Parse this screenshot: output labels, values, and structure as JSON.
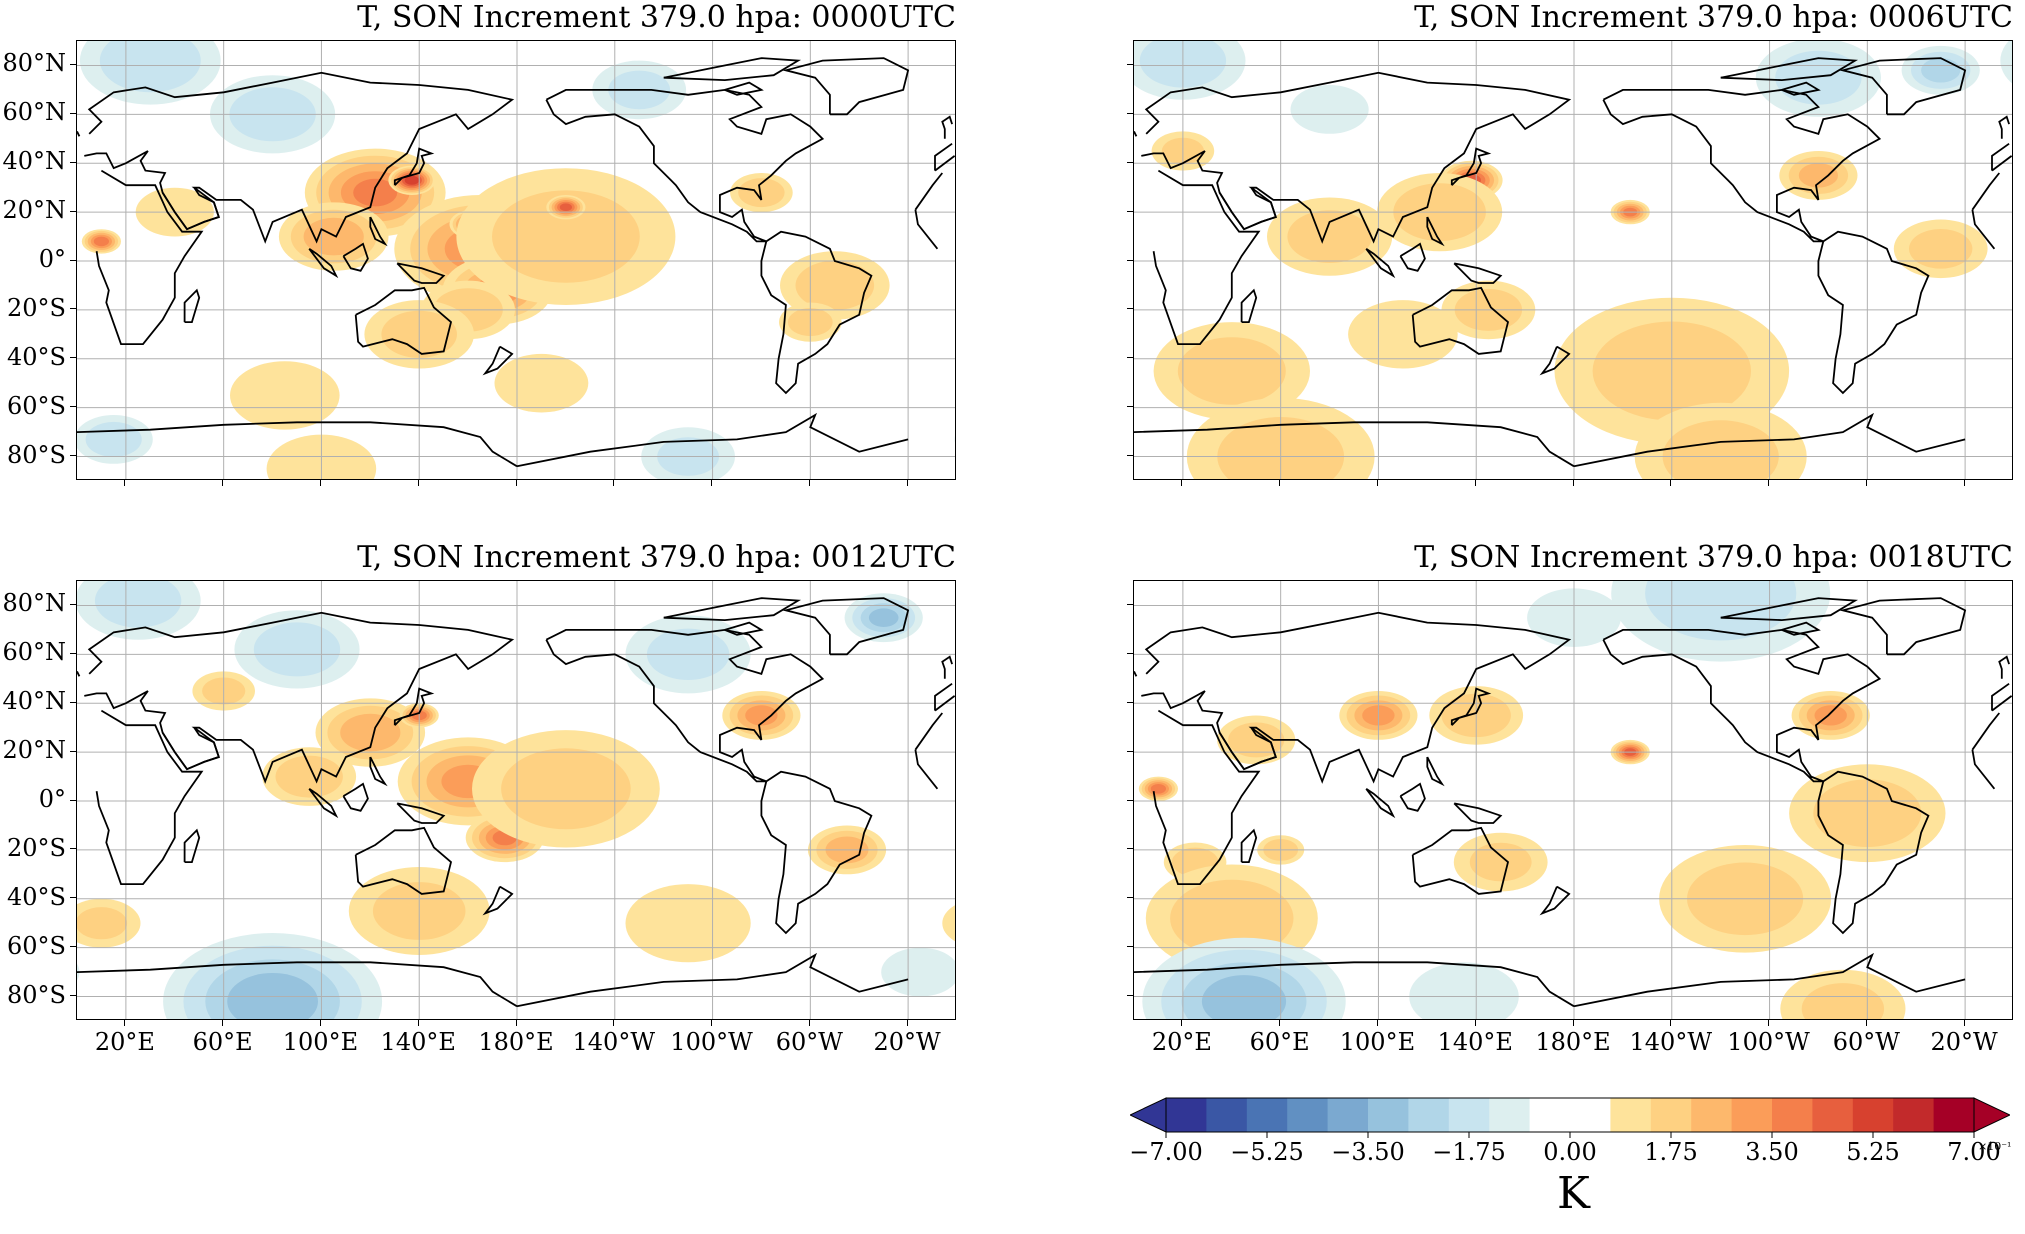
{
  "panels": [
    {
      "id": "p0000",
      "title": "T, SON Increment 379.0 hpa: 0000UTC"
    },
    {
      "id": "p0006",
      "title": "T, SON Increment 379.0 hpa: 0006UTC"
    },
    {
      "id": "p0012",
      "title": "T, SON Increment 379.0 hpa: 0012UTC"
    },
    {
      "id": "p0018",
      "title": "T, SON Increment 379.0 hpa: 0018UTC"
    }
  ],
  "lat_labels": [
    "80°N",
    "60°N",
    "40°N",
    "20°N",
    "0°",
    "20°S",
    "40°S",
    "60°S",
    "80°S"
  ],
  "lon_labels": [
    "20°E",
    "60°E",
    "100°E",
    "140°E",
    "180°E",
    "140°W",
    "100°W",
    "60°W",
    "20°W"
  ],
  "colorbar": {
    "tick_labels": [
      "−7.00",
      "−5.25",
      "−3.50",
      "−1.75",
      "0.00",
      "1.75",
      "3.50",
      "5.25",
      "7.00"
    ],
    "unit": "K",
    "exponent": "×10⁻¹",
    "colors": [
      "#313695",
      "#3a57a5",
      "#4a74b4",
      "#6190c2",
      "#7ba9d0",
      "#96c2dd",
      "#b1d6e8",
      "#c8e4ef",
      "#ddefef",
      "#ffffff",
      "#ffffff",
      "#fee39b",
      "#fed182",
      "#fdb86c",
      "#fb9d59",
      "#f47f4b",
      "#e75f3e",
      "#d7412f",
      "#c22a2b",
      "#a50026"
    ],
    "extend_min_color": "#313695",
    "extend_max_color": "#a50026"
  },
  "chart_data": {
    "type": "heatmap",
    "variable": "T",
    "units": "K",
    "scale": "×10⁻¹",
    "levels": [
      -7.0,
      -6.3,
      -5.6,
      -4.9,
      -4.2,
      -3.5,
      -2.8,
      -2.1,
      -1.4,
      -0.7,
      0.0,
      0.7,
      1.4,
      2.1,
      2.8,
      3.5,
      4.2,
      4.9,
      5.6,
      6.3,
      7.0
    ],
    "lat_range": [
      -90,
      90
    ],
    "lon_range": [
      0,
      360
    ],
    "panels": [
      {
        "time": "0000UTC",
        "warm": [
          {
            "lon": 122,
            "lat": 28,
            "r": 18,
            "v": 3.5
          },
          {
            "lon": 137,
            "lat": 33,
            "r": 6,
            "v": 5.5
          },
          {
            "lon": 165,
            "lat": 5,
            "r": 22,
            "v": 3.0
          },
          {
            "lon": 162,
            "lat": 15,
            "r": 6,
            "v": 4.5
          },
          {
            "lon": 172,
            "lat": -12,
            "r": 14,
            "v": 3.0
          },
          {
            "lon": 160,
            "lat": -20,
            "r": 12,
            "v": 2.0
          },
          {
            "lon": 200,
            "lat": 10,
            "r": 28,
            "v": 1.5
          },
          {
            "lon": 200,
            "lat": 22,
            "r": 5,
            "v": 4.5
          },
          {
            "lon": 105,
            "lat": 10,
            "r": 14,
            "v": 2.5
          },
          {
            "lon": 10,
            "lat": 8,
            "r": 5,
            "v": 4.0
          },
          {
            "lon": 280,
            "lat": 28,
            "r": 8,
            "v": 2.0
          },
          {
            "lon": 310,
            "lat": -10,
            "r": 14,
            "v": 1.8
          },
          {
            "lon": 300,
            "lat": -25,
            "r": 8,
            "v": 1.8
          },
          {
            "lon": 140,
            "lat": -30,
            "r": 14,
            "v": 1.6
          },
          {
            "lon": 85,
            "lat": -55,
            "r": 14,
            "v": 1.2
          },
          {
            "lon": 40,
            "lat": 20,
            "r": 10,
            "v": 1.2
          },
          {
            "lon": 190,
            "lat": -50,
            "r": 12,
            "v": 1.1
          },
          {
            "lon": 100,
            "lat": -85,
            "r": 14,
            "v": 1.1
          }
        ],
        "cold": [
          {
            "lon": 30,
            "lat": 82,
            "r": 18,
            "v": -1.8
          },
          {
            "lon": 80,
            "lat": 60,
            "r": 16,
            "v": -1.6
          },
          {
            "lon": 230,
            "lat": 70,
            "r": 12,
            "v": -1.4
          },
          {
            "lon": 15,
            "lat": -73,
            "r": 10,
            "v": -1.8
          },
          {
            "lon": 250,
            "lat": -80,
            "r": 12,
            "v": -1.4
          }
        ]
      },
      {
        "time": "0006UTC",
        "warm": [
          {
            "lon": 138,
            "lat": 33,
            "r": 8,
            "v": 4.5
          },
          {
            "lon": 125,
            "lat": 20,
            "r": 16,
            "v": 2.0
          },
          {
            "lon": 80,
            "lat": 10,
            "r": 16,
            "v": 1.5
          },
          {
            "lon": 145,
            "lat": -20,
            "r": 12,
            "v": 1.8
          },
          {
            "lon": 203,
            "lat": 20,
            "r": 5,
            "v": 3.8
          },
          {
            "lon": 280,
            "lat": 35,
            "r": 10,
            "v": 2.2
          },
          {
            "lon": 20,
            "lat": 45,
            "r": 8,
            "v": 1.5
          },
          {
            "lon": 330,
            "lat": 5,
            "r": 12,
            "v": 1.5
          },
          {
            "lon": 40,
            "lat": -45,
            "r": 20,
            "v": 1.6
          },
          {
            "lon": 220,
            "lat": -45,
            "r": 30,
            "v": 1.5
          },
          {
            "lon": 60,
            "lat": -80,
            "r": 24,
            "v": 1.5
          },
          {
            "lon": 240,
            "lat": -80,
            "r": 22,
            "v": 1.5
          },
          {
            "lon": 110,
            "lat": -30,
            "r": 14,
            "v": 1.2
          }
        ],
        "cold": [
          {
            "lon": 20,
            "lat": 82,
            "r": 16,
            "v": -1.6
          },
          {
            "lon": 280,
            "lat": 75,
            "r": 16,
            "v": -1.6
          },
          {
            "lon": 330,
            "lat": 78,
            "r": 10,
            "v": -2.2
          },
          {
            "lon": 80,
            "lat": 62,
            "r": 10,
            "v": -1.2
          }
        ]
      },
      {
        "time": "0012UTC",
        "warm": [
          {
            "lon": 120,
            "lat": 28,
            "r": 14,
            "v": 2.5
          },
          {
            "lon": 140,
            "lat": 35,
            "r": 5,
            "v": 4.0
          },
          {
            "lon": 160,
            "lat": 8,
            "r": 18,
            "v": 2.8
          },
          {
            "lon": 175,
            "lat": -15,
            "r": 10,
            "v": 3.5
          },
          {
            "lon": 200,
            "lat": 5,
            "r": 24,
            "v": 1.6
          },
          {
            "lon": 280,
            "lat": 35,
            "r": 10,
            "v": 3.0
          },
          {
            "lon": 315,
            "lat": -20,
            "r": 10,
            "v": 2.5
          },
          {
            "lon": 95,
            "lat": 10,
            "r": 12,
            "v": 1.8
          },
          {
            "lon": 60,
            "lat": 45,
            "r": 8,
            "v": 1.6
          },
          {
            "lon": 10,
            "lat": -50,
            "r": 10,
            "v": 1.4
          },
          {
            "lon": 140,
            "lat": -45,
            "r": 18,
            "v": 1.4
          },
          {
            "lon": 250,
            "lat": -50,
            "r": 16,
            "v": 1.3
          }
        ],
        "cold": [
          {
            "lon": 80,
            "lat": -82,
            "r": 28,
            "v": -3.0
          },
          {
            "lon": 25,
            "lat": 82,
            "r": 16,
            "v": -1.6
          },
          {
            "lon": 330,
            "lat": 75,
            "r": 10,
            "v": -2.8
          },
          {
            "lon": 90,
            "lat": 62,
            "r": 16,
            "v": -1.6
          },
          {
            "lon": 250,
            "lat": 60,
            "r": 16,
            "v": -1.4
          },
          {
            "lon": 345,
            "lat": -70,
            "r": 10,
            "v": -1.2
          }
        ]
      },
      {
        "time": "0018UTC",
        "warm": [
          {
            "lon": 100,
            "lat": 35,
            "r": 10,
            "v": 3.0
          },
          {
            "lon": 285,
            "lat": 35,
            "r": 10,
            "v": 3.0
          },
          {
            "lon": 10,
            "lat": 5,
            "r": 5,
            "v": 4.0
          },
          {
            "lon": 203,
            "lat": 20,
            "r": 5,
            "v": 4.5
          },
          {
            "lon": 140,
            "lat": 35,
            "r": 12,
            "v": 2.0
          },
          {
            "lon": 50,
            "lat": 25,
            "r": 10,
            "v": 1.8
          },
          {
            "lon": 25,
            "lat": -25,
            "r": 8,
            "v": 2.0
          },
          {
            "lon": 60,
            "lat": -20,
            "r": 6,
            "v": 2.0
          },
          {
            "lon": 250,
            "lat": -40,
            "r": 22,
            "v": 1.5
          },
          {
            "lon": 40,
            "lat": -48,
            "r": 22,
            "v": 1.8
          },
          {
            "lon": 300,
            "lat": -5,
            "r": 20,
            "v": 1.6
          },
          {
            "lon": 290,
            "lat": -85,
            "r": 16,
            "v": 1.4
          },
          {
            "lon": 150,
            "lat": -25,
            "r": 12,
            "v": 1.4
          }
        ],
        "cold": [
          {
            "lon": 45,
            "lat": -82,
            "r": 26,
            "v": -3.0
          },
          {
            "lon": 240,
            "lat": 85,
            "r": 28,
            "v": -1.6
          },
          {
            "lon": 135,
            "lat": -80,
            "r": 14,
            "v": -1.2
          },
          {
            "lon": 180,
            "lat": 75,
            "r": 12,
            "v": -1.2
          }
        ]
      }
    ]
  }
}
